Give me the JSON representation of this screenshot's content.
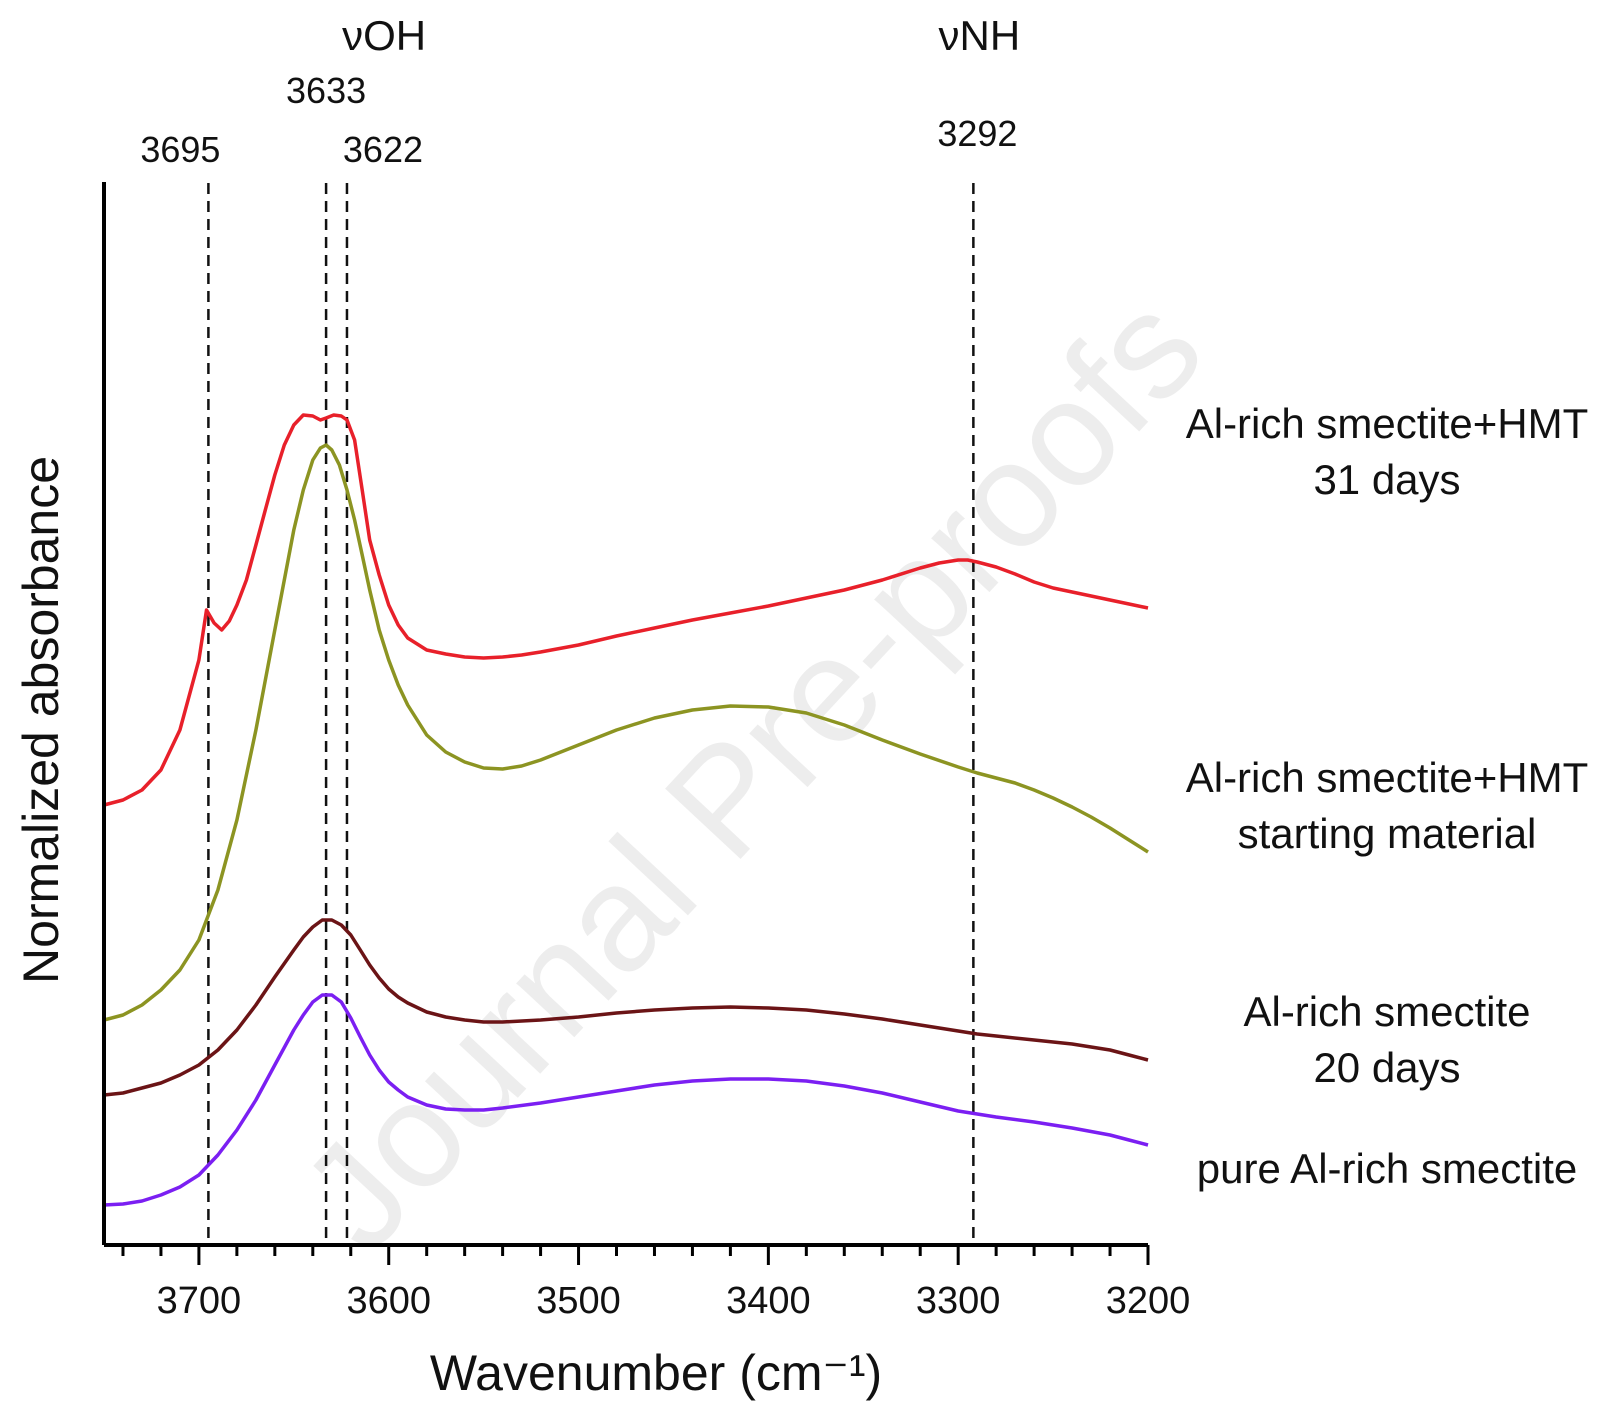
{
  "chart_data": {
    "type": "line",
    "xlabel": "Wavenumber (cm⁻¹)",
    "ylabel": "Normalized absorbance",
    "xlim": [
      3750,
      3200
    ],
    "x_reversed": true,
    "y_tick_labels": false,
    "grid": false,
    "legend": "inline-right",
    "x_ticks": [
      3700,
      3600,
      3500,
      3400,
      3300,
      3200
    ],
    "x_minor_step": 20,
    "reference_lines": [
      {
        "x": 3695,
        "label": "3695"
      },
      {
        "x": 3633,
        "label": "3633"
      },
      {
        "x": 3622,
        "label": "3622"
      },
      {
        "x": 3292,
        "label": "3292"
      }
    ],
    "band_labels": [
      {
        "label": "νOH",
        "x": 3633
      },
      {
        "label": "νNH",
        "x": 3292
      }
    ],
    "series": [
      {
        "name": "Al-rich smectite+HMT 31 days",
        "label_lines": [
          "Al-rich smectite+HMT",
          "31 days"
        ],
        "color": "#e8202a",
        "x": [
          3750,
          3740,
          3730,
          3720,
          3710,
          3700,
          3696,
          3692,
          3688,
          3684,
          3680,
          3675,
          3670,
          3665,
          3660,
          3655,
          3650,
          3645,
          3640,
          3636,
          3633,
          3629,
          3625,
          3622,
          3618,
          3614,
          3610,
          3605,
          3600,
          3595,
          3590,
          3580,
          3570,
          3560,
          3550,
          3540,
          3530,
          3520,
          3500,
          3480,
          3460,
          3440,
          3420,
          3400,
          3380,
          3360,
          3340,
          3320,
          3310,
          3300,
          3295,
          3290,
          3280,
          3270,
          3260,
          3250,
          3240,
          3230,
          3220,
          3210,
          3200
        ],
        "y": [
          0.425,
          0.43,
          0.44,
          0.46,
          0.5,
          0.57,
          0.62,
          0.607,
          0.6,
          0.609,
          0.625,
          0.65,
          0.685,
          0.72,
          0.755,
          0.785,
          0.805,
          0.815,
          0.814,
          0.81,
          0.812,
          0.815,
          0.814,
          0.81,
          0.79,
          0.74,
          0.69,
          0.655,
          0.625,
          0.605,
          0.592,
          0.58,
          0.576,
          0.573,
          0.572,
          0.573,
          0.575,
          0.578,
          0.585,
          0.594,
          0.602,
          0.61,
          0.617,
          0.624,
          0.632,
          0.64,
          0.65,
          0.662,
          0.667,
          0.67,
          0.67,
          0.668,
          0.663,
          0.656,
          0.648,
          0.642,
          0.638,
          0.634,
          0.63,
          0.626,
          0.622
        ]
      },
      {
        "name": "Al-rich smectite+HMT starting material",
        "label_lines": [
          "Al-rich smectite+HMT",
          "starting material"
        ],
        "color": "#8c9422",
        "x": [
          3750,
          3740,
          3730,
          3720,
          3710,
          3700,
          3690,
          3680,
          3670,
          3660,
          3650,
          3645,
          3640,
          3636,
          3633,
          3630,
          3626,
          3622,
          3618,
          3614,
          3610,
          3605,
          3600,
          3595,
          3590,
          3580,
          3570,
          3560,
          3550,
          3540,
          3530,
          3520,
          3500,
          3480,
          3460,
          3440,
          3420,
          3400,
          3380,
          3360,
          3340,
          3320,
          3300,
          3290,
          3280,
          3270,
          3260,
          3250,
          3240,
          3230,
          3220,
          3210,
          3200
        ],
        "y": [
          0.21,
          0.215,
          0.225,
          0.24,
          0.26,
          0.29,
          0.34,
          0.41,
          0.5,
          0.6,
          0.7,
          0.74,
          0.77,
          0.782,
          0.785,
          0.78,
          0.765,
          0.74,
          0.71,
          0.675,
          0.64,
          0.6,
          0.57,
          0.545,
          0.525,
          0.495,
          0.478,
          0.468,
          0.462,
          0.461,
          0.464,
          0.47,
          0.485,
          0.5,
          0.512,
          0.52,
          0.524,
          0.523,
          0.517,
          0.505,
          0.49,
          0.476,
          0.463,
          0.457,
          0.452,
          0.447,
          0.44,
          0.432,
          0.423,
          0.413,
          0.402,
          0.39,
          0.378
        ]
      },
      {
        "name": "Al-rich smectite 20 days",
        "label_lines": [
          "Al-rich smectite",
          "20 days"
        ],
        "color": "#6b1416",
        "x": [
          3750,
          3740,
          3730,
          3720,
          3710,
          3700,
          3690,
          3680,
          3670,
          3660,
          3650,
          3645,
          3640,
          3635,
          3630,
          3625,
          3620,
          3615,
          3610,
          3605,
          3600,
          3595,
          3590,
          3580,
          3570,
          3560,
          3550,
          3540,
          3520,
          3500,
          3480,
          3460,
          3440,
          3420,
          3400,
          3380,
          3360,
          3340,
          3320,
          3300,
          3290,
          3280,
          3260,
          3240,
          3220,
          3210,
          3200
        ],
        "y": [
          0.135,
          0.137,
          0.142,
          0.147,
          0.155,
          0.165,
          0.18,
          0.2,
          0.225,
          0.253,
          0.28,
          0.293,
          0.303,
          0.31,
          0.31,
          0.305,
          0.295,
          0.28,
          0.265,
          0.252,
          0.241,
          0.233,
          0.227,
          0.218,
          0.213,
          0.21,
          0.208,
          0.208,
          0.21,
          0.213,
          0.217,
          0.22,
          0.222,
          0.223,
          0.222,
          0.22,
          0.216,
          0.211,
          0.205,
          0.199,
          0.196,
          0.194,
          0.19,
          0.186,
          0.18,
          0.175,
          0.17
        ]
      },
      {
        "name": "pure Al-rich smectite",
        "label_lines": [
          "pure Al-rich smectite"
        ],
        "color": "#7b1ff2",
        "x": [
          3750,
          3740,
          3730,
          3720,
          3710,
          3700,
          3690,
          3680,
          3670,
          3660,
          3650,
          3645,
          3640,
          3635,
          3630,
          3625,
          3620,
          3615,
          3610,
          3605,
          3600,
          3595,
          3590,
          3580,
          3570,
          3560,
          3550,
          3540,
          3520,
          3500,
          3480,
          3460,
          3440,
          3420,
          3400,
          3380,
          3360,
          3340,
          3320,
          3300,
          3290,
          3280,
          3260,
          3240,
          3220,
          3210,
          3200
        ],
        "y": [
          0.025,
          0.026,
          0.029,
          0.035,
          0.043,
          0.055,
          0.075,
          0.1,
          0.13,
          0.165,
          0.2,
          0.215,
          0.228,
          0.235,
          0.235,
          0.228,
          0.212,
          0.193,
          0.175,
          0.16,
          0.148,
          0.14,
          0.133,
          0.125,
          0.121,
          0.12,
          0.12,
          0.122,
          0.127,
          0.133,
          0.139,
          0.145,
          0.149,
          0.151,
          0.151,
          0.149,
          0.144,
          0.137,
          0.128,
          0.119,
          0.116,
          0.113,
          0.108,
          0.102,
          0.095,
          0.09,
          0.085
        ]
      }
    ]
  },
  "watermark": "Journal Pre-proofs"
}
